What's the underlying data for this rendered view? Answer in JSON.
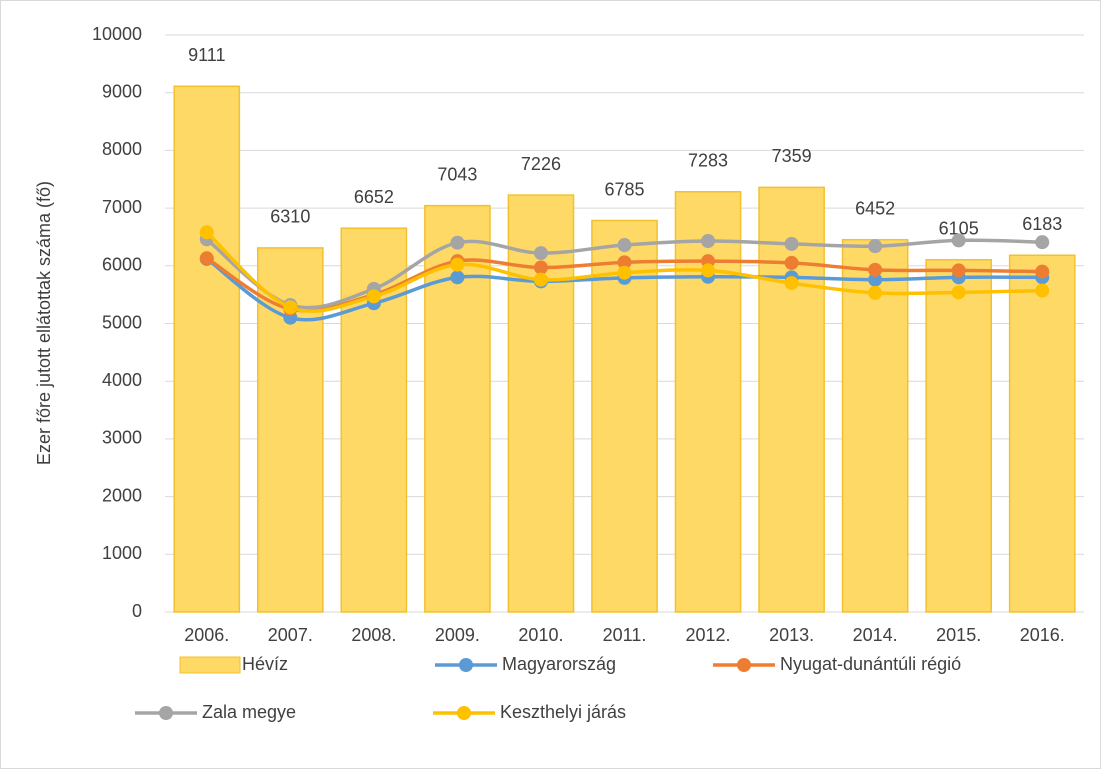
{
  "chart_data": {
    "type": "bar",
    "y_label": "Ezer főre jutott ellátottak száma (fő)",
    "categories": [
      "2006.",
      "2007.",
      "2008.",
      "2009.",
      "2010.",
      "2011.",
      "2012.",
      "2013.",
      "2014.",
      "2015.",
      "2016."
    ],
    "series": [
      {
        "name": "Hévíz",
        "type": "bar",
        "color": "#ffd966",
        "values": [
          9111,
          6310,
          6652,
          7043,
          7226,
          6785,
          7283,
          7359,
          6452,
          6105,
          6183
        ]
      },
      {
        "name": "Magyarország",
        "type": "line",
        "color": "#5b9bd5",
        "values": [
          6120,
          5100,
          5350,
          5800,
          5730,
          5790,
          5810,
          5800,
          5760,
          5800,
          5800
        ]
      },
      {
        "name": "Nyugat-dunántúli régió",
        "type": "line",
        "color": "#ed7d31",
        "values": [
          6130,
          5250,
          5500,
          6080,
          5970,
          6060,
          6080,
          6050,
          5930,
          5920,
          5900
        ]
      },
      {
        "name": "Zala megye",
        "type": "line",
        "color": "#a5a5a5",
        "values": [
          6460,
          5320,
          5600,
          6400,
          6220,
          6360,
          6430,
          6380,
          6340,
          6440,
          6410
        ]
      },
      {
        "name": "Keszthelyi járás",
        "type": "line",
        "color": "#ffc000",
        "values": [
          6580,
          5280,
          5470,
          6020,
          5760,
          5880,
          5920,
          5700,
          5530,
          5540,
          5570
        ]
      }
    ],
    "ylim": [
      0,
      10000
    ],
    "yticks": [
      0,
      1000,
      2000,
      3000,
      4000,
      5000,
      6000,
      7000,
      8000,
      9000,
      10000
    ],
    "grid": true,
    "legend": "bottom"
  }
}
